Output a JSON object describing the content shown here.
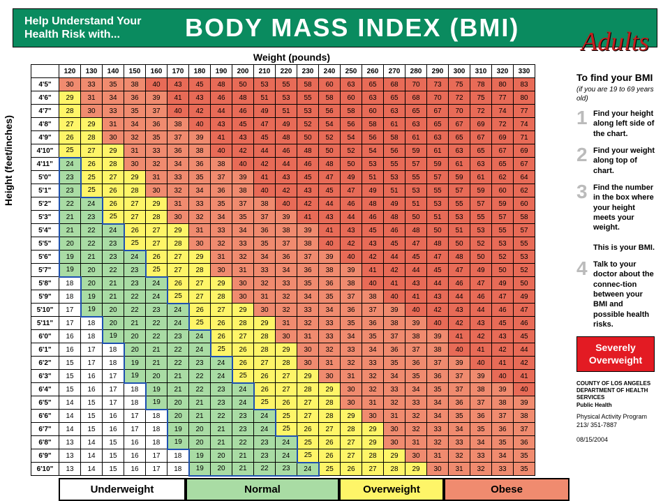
{
  "header": {
    "tagline_line1": "Help Understand Your",
    "tagline_line2": "Health Risk with...",
    "title": "BODY MASS INDEX (BMI)",
    "adults": "Adults"
  },
  "axis": {
    "weight_label": "Weight (pounds)",
    "height_label": "Height (feet/inches)"
  },
  "sidebar": {
    "find_title": "To find your BMI",
    "subtitle": "(if you are 19 to 69 years old)",
    "steps": [
      "Find your height along left side of the chart.",
      "Find your weight along top of chart.",
      "Find the number in the box where your height meets your weight.\n\nThis is your BMI.",
      "Talk to your doctor about the connec-tion between your BMI and possible health risks."
    ],
    "severe": "Severely Overweight",
    "org_line1": "COUNTY OF LOS ANGELES",
    "org_line2": "DEPARTMENT OF HEALTH SERVICES",
    "org_line3": "Public Health",
    "program": "Physical Activity Program",
    "phone": "213/ 351-7887",
    "date": "08/15/2004"
  },
  "legend": {
    "underweight": "Underweight",
    "normal": "Normal",
    "overweight": "Overweight",
    "obese": "Obese"
  },
  "legend_colors": {
    "underweight": "#ffffff",
    "normal": "#a9dca4",
    "overweight": "#fef568",
    "obese": "#f08b6f",
    "severe": "#e86b57",
    "normal_border": "#1e4fb0"
  },
  "thresholds": {
    "normal_min": 19,
    "overweight_min": 25,
    "obese_min": 30,
    "severe_min": 40
  },
  "weights": [
    120,
    130,
    140,
    150,
    160,
    170,
    180,
    190,
    200,
    210,
    220,
    230,
    240,
    250,
    260,
    270,
    280,
    290,
    300,
    310,
    320,
    330
  ],
  "heights": [
    {
      "label": "4'5\"",
      "inches": 53
    },
    {
      "label": "4'6\"",
      "inches": 54
    },
    {
      "label": "4'7\"",
      "inches": 55
    },
    {
      "label": "4'8\"",
      "inches": 56
    },
    {
      "label": "4'9\"",
      "inches": 57
    },
    {
      "label": "4'10\"",
      "inches": 58
    },
    {
      "label": "4'11\"",
      "inches": 59
    },
    {
      "label": "5'0\"",
      "inches": 60
    },
    {
      "label": "5'1\"",
      "inches": 61
    },
    {
      "label": "5'2\"",
      "inches": 62
    },
    {
      "label": "5'3\"",
      "inches": 63
    },
    {
      "label": "5'4\"",
      "inches": 64
    },
    {
      "label": "5'5\"",
      "inches": 65
    },
    {
      "label": "5'6\"",
      "inches": 66
    },
    {
      "label": "5'7\"",
      "inches": 67
    },
    {
      "label": "5'8\"",
      "inches": 68
    },
    {
      "label": "5'9\"",
      "inches": 69
    },
    {
      "label": "5'10\"",
      "inches": 70
    },
    {
      "label": "5'11\"",
      "inches": 71
    },
    {
      "label": "6'0\"",
      "inches": 72
    },
    {
      "label": "6'1\"",
      "inches": 73
    },
    {
      "label": "6'2\"",
      "inches": 74
    },
    {
      "label": "6'3\"",
      "inches": 75
    },
    {
      "label": "6'4\"",
      "inches": 76
    },
    {
      "label": "6'5\"",
      "inches": 77
    },
    {
      "label": "6'6\"",
      "inches": 78
    },
    {
      "label": "6'7\"",
      "inches": 79
    },
    {
      "label": "6'8\"",
      "inches": 80
    },
    {
      "label": "6'9\"",
      "inches": 81
    },
    {
      "label": "6'10\"",
      "inches": 82
    }
  ],
  "legend_widths": {
    "underweight": "182px",
    "normal": "220px",
    "overweight": "150px",
    "obese": "180px"
  }
}
